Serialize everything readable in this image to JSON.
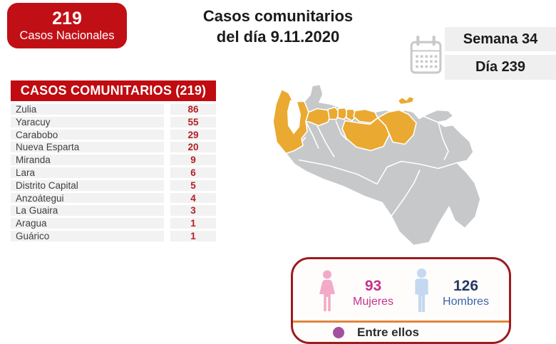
{
  "header": {
    "badge_value": "219",
    "badge_label": "Casos Nacionales",
    "title_line1": "Casos comunitarios",
    "title_line2": "del día 9.11.2020",
    "week": "Semana 34",
    "day": "Día 239"
  },
  "table": {
    "header": "CASOS COMUNITARIOS (219)",
    "rows": [
      {
        "state": "Zulia",
        "cases": "86"
      },
      {
        "state": "Yaracuy",
        "cases": "55"
      },
      {
        "state": "Carabobo",
        "cases": "29"
      },
      {
        "state": "Nueva Esparta",
        "cases": "20"
      },
      {
        "state": "Miranda",
        "cases": "9"
      },
      {
        "state": "Lara",
        "cases": "6"
      },
      {
        "state": "Distrito Capital",
        "cases": "5"
      },
      {
        "state": "Anzoátegui",
        "cases": "4"
      },
      {
        "state": "La Guaira",
        "cases": "3"
      },
      {
        "state": "Aragua",
        "cases": "1"
      },
      {
        "state": "Guárico",
        "cases": "1"
      }
    ]
  },
  "map": {
    "highlighted_states": [
      "Zulia",
      "Lara",
      "Yaracuy",
      "Carabobo",
      "Aragua",
      "Miranda",
      "Guárico",
      "Anzoátegui",
      "Nueva Esparta"
    ]
  },
  "demographics": {
    "women_value": "93",
    "women_label": "Mujeres",
    "men_value": "126",
    "men_label": "Hombres",
    "among_them_label": "Entre ellos"
  },
  "chart_data": {
    "type": "table",
    "title": "Casos comunitarios del día 9.11.2020",
    "total_national_cases": 219,
    "total_community_cases": 219,
    "week": 34,
    "day": 239,
    "categories": [
      "Zulia",
      "Yaracuy",
      "Carabobo",
      "Nueva Esparta",
      "Miranda",
      "Lara",
      "Distrito Capital",
      "Anzoátegui",
      "La Guaira",
      "Aragua",
      "Guárico"
    ],
    "values": [
      86,
      55,
      29,
      20,
      9,
      6,
      5,
      4,
      3,
      1,
      1
    ],
    "gender": {
      "mujeres": 93,
      "hombres": 126
    }
  },
  "colors": {
    "badge-red": "#c01016",
    "header-red": "#c00b10",
    "value-red": "#b22126",
    "row-bg": "#f2f2f2",
    "row-text": "#3f3f3f",
    "pill-bg": "#efefef",
    "text-dark": "#1b1b1b",
    "map-gray": "#c6c8ca",
    "map-gold": "#eaa930",
    "box-border": "#9c1b1e",
    "divider-orange": "#e2853d",
    "female-pink": "#f3aac6",
    "women-text": "#c2348b",
    "male-blue": "#c4d9ef",
    "men-value": "#273a5e",
    "men-label": "#3c64a6",
    "purple": "#a3509e",
    "calendar-gray": "#c9c9c9"
  }
}
